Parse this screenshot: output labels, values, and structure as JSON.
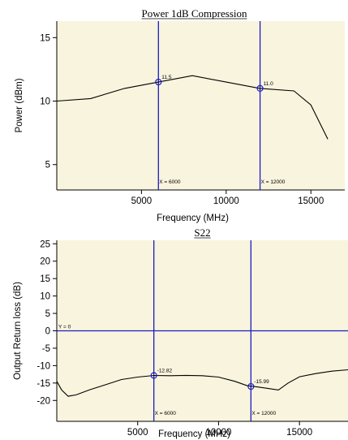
{
  "colors": {
    "plot_bg": "#f8f4de",
    "marker_line": "#1c1cc0",
    "trace": "#000000",
    "marker_circle": "#1c1cc0"
  },
  "chart_data": [
    {
      "type": "line",
      "title": "Power 1dB Compression",
      "title_underline": true,
      "xlabel": "Frequency (MHz)",
      "ylabel": "Power (dBm)",
      "xlim": [
        0,
        17000
      ],
      "ylim": [
        3,
        16.3
      ],
      "xticks": [
        5000,
        10000,
        15000
      ],
      "yticks": [
        5,
        10,
        15
      ],
      "series": [
        {
          "x": [
            0,
            2000,
            4000,
            6000,
            8000,
            10000,
            12000,
            14000,
            15000,
            16000
          ],
          "y": [
            10.0,
            10.2,
            11.0,
            11.5,
            12.0,
            11.5,
            11.0,
            10.8,
            9.7,
            7.0
          ]
        }
      ],
      "reference_lines": [],
      "markers": [
        {
          "x": 6000,
          "y": 11.5,
          "value_label": "11.5",
          "x_label": "X = 6000"
        },
        {
          "x": 12000,
          "y": 11.0,
          "value_label": "11.0",
          "x_label": "X = 12000"
        }
      ]
    },
    {
      "type": "line",
      "title": "S22",
      "title_underline": true,
      "xlabel": "Frequency (MHz)",
      "ylabel": "Output Return loss (dB)",
      "xlim": [
        0,
        18000
      ],
      "ylim": [
        -26,
        26
      ],
      "xticks": [
        5000,
        10000,
        15000
      ],
      "yticks": [
        25,
        20,
        15,
        10,
        5,
        0,
        -5,
        -10,
        -15,
        -20
      ],
      "series": [
        {
          "x": [
            0,
            300,
            700,
            1200,
            2000,
            3000,
            4000,
            5000,
            6000,
            7000,
            8000,
            9000,
            10000,
            11000,
            11800,
            12200,
            13000,
            13700,
            14300,
            15000,
            16000,
            17000,
            18000
          ],
          "y": [
            -14.5,
            -17.0,
            -18.8,
            -18.4,
            -17.0,
            -15.5,
            -14.0,
            -13.3,
            -12.82,
            -12.9,
            -12.8,
            -12.9,
            -13.3,
            -14.5,
            -15.8,
            -15.99,
            -16.5,
            -17.0,
            -15.0,
            -13.2,
            -12.3,
            -11.6,
            -11.2
          ]
        }
      ],
      "reference_lines": [
        {
          "y": 0,
          "label": "Y = 0"
        }
      ],
      "markers": [
        {
          "x": 6000,
          "y": -12.82,
          "value_label": "-12.82",
          "x_label": "X = 6000"
        },
        {
          "x": 12000,
          "y": -15.99,
          "value_label": "-15.99",
          "x_label": "X = 12000"
        }
      ]
    }
  ]
}
